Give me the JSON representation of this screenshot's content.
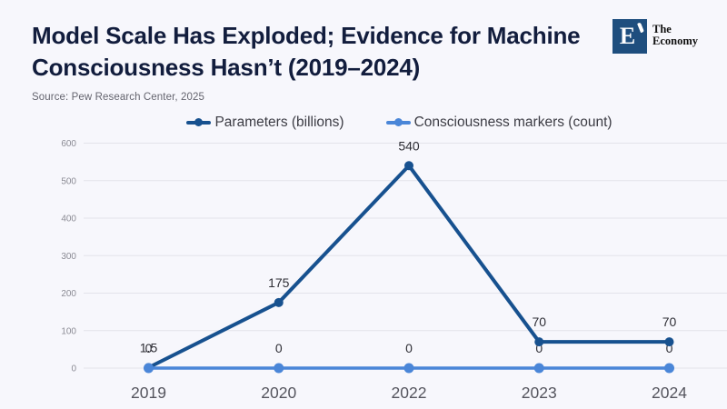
{
  "header": {
    "title": "Model Scale Has Exploded; Evidence for Machine Consciousness Hasn’t (2019–2024)",
    "logo": {
      "monogram": "E",
      "name_line1": "The",
      "name_line2": "Economy"
    }
  },
  "source": "Source: Pew Research Center, 2025",
  "legend": [
    {
      "label": "Parameters (billions)",
      "color": "#17518f"
    },
    {
      "label": "Consciousness markers (count)",
      "color": "#4a86d8"
    }
  ],
  "colors": {
    "background": "#f7f7fc",
    "title": "#121d3d",
    "grid": "#e3e3ea",
    "y_tick_text": "#8b8b94",
    "x_tick_text": "#55555e",
    "value_label_text": "#2f2f36",
    "logo_box": "#1e4e7e"
  },
  "chart_data": {
    "type": "line",
    "categories": [
      "2019",
      "2020",
      "2022",
      "2023",
      "2024"
    ],
    "series": [
      {
        "name": "Parameters (billions)",
        "color": "#17518f",
        "values": [
          1.5,
          175,
          540,
          70,
          70
        ],
        "labels": [
          "1.5",
          "175",
          "540",
          "70",
          "70"
        ]
      },
      {
        "name": "Consciousness markers (count)",
        "color": "#4a86d8",
        "values": [
          0,
          0,
          0,
          0,
          0
        ],
        "labels": [
          "0",
          "0",
          "0",
          "0",
          "0"
        ]
      }
    ],
    "title": "Model Scale Has Exploded; Evidence for Machine Consciousness Hasn’t (2019–2024)",
    "xlabel": "",
    "ylabel": "",
    "ylim": [
      0,
      600
    ],
    "yticks": [
      0,
      100,
      200,
      300,
      400,
      500,
      600
    ],
    "grid": true,
    "legend_position": "top"
  }
}
